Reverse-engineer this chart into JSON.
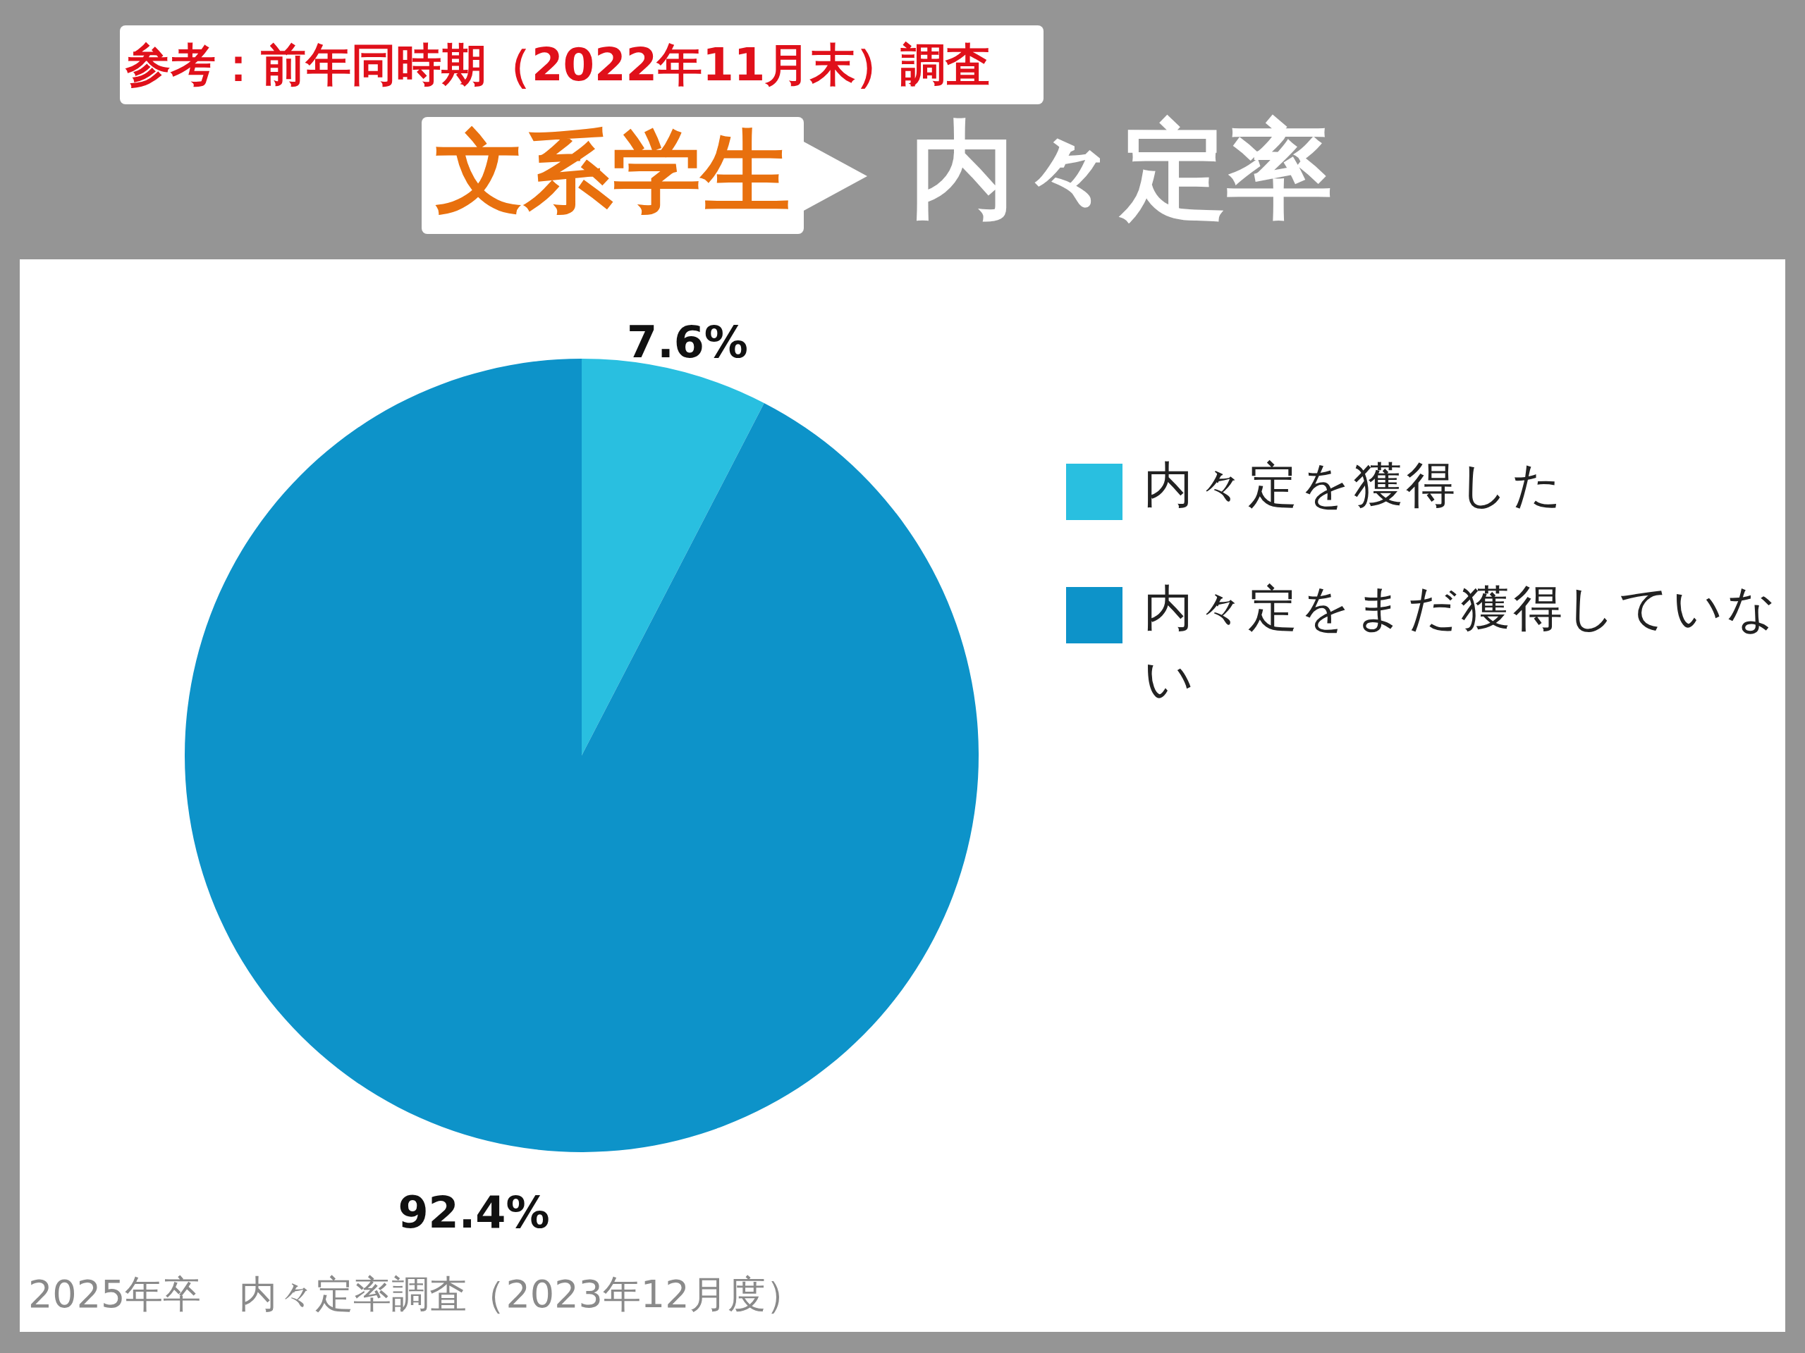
{
  "chart_data": {
    "type": "pie",
    "title": "文系学生",
    "subtitle": "内々定率",
    "categories": [
      "内々定を獲得した",
      "内々定をまだ獲得していない"
    ],
    "values": [
      7.6,
      92.4
    ],
    "colors": [
      "#29bfe0",
      "#0d93c9"
    ],
    "value_labels": [
      "7.6%",
      "92.4%"
    ],
    "legend": "right",
    "annotations": [
      "参考：前年同時期（2022年11月末）調査",
      "2025年卒　内々定率調査（2023年12月度）"
    ]
  }
}
